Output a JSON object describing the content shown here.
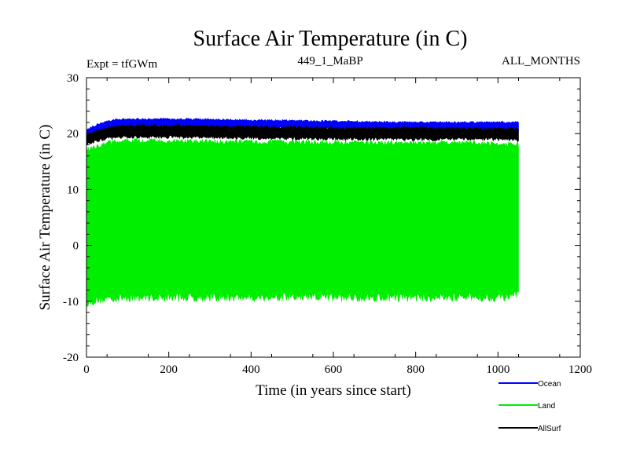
{
  "chart_data": {
    "type": "area",
    "title": "Surface Air Temperature (in C)",
    "subtitle_left": "Expt = tfGWm",
    "subtitle_center": "449_1_MaBP",
    "subtitle_right": "ALL_MONTHS",
    "xlabel": "Time (in years since start)",
    "ylabel": "Surface Air Temperature (in C)",
    "xlim": [
      0,
      1200
    ],
    "ylim": [
      -20,
      30
    ],
    "xticks": [
      0,
      200,
      400,
      600,
      800,
      1000,
      1200
    ],
    "yticks": [
      -20,
      -10,
      0,
      10,
      20,
      30
    ],
    "data_x_range": [
      0,
      1050
    ],
    "series": [
      {
        "name": "Ocean",
        "color": "#0000ff",
        "x": [
          0,
          25,
          50,
          75,
          100,
          150,
          200,
          300,
          400,
          500,
          600,
          700,
          800,
          900,
          1000,
          1050
        ],
        "upper": [
          20.8,
          21.8,
          22.4,
          22.7,
          22.8,
          22.8,
          22.8,
          22.7,
          22.6,
          22.5,
          22.4,
          22.3,
          22.2,
          22.2,
          22.2,
          22.2
        ],
        "lower": [
          19.2,
          20.2,
          20.9,
          21.2,
          21.3,
          21.3,
          21.3,
          21.2,
          21.1,
          21.0,
          20.9,
          20.8,
          20.8,
          20.7,
          20.7,
          20.7
        ]
      },
      {
        "name": "Land",
        "color": "#00ee00",
        "x": [
          0,
          25,
          50,
          75,
          100,
          150,
          200,
          300,
          400,
          500,
          600,
          700,
          800,
          900,
          1000,
          1050
        ],
        "upper": [
          17.5,
          18.3,
          18.8,
          19.0,
          19.2,
          19.2,
          19.1,
          19.0,
          19.0,
          18.9,
          18.9,
          18.8,
          18.8,
          18.8,
          18.7,
          18.5
        ],
        "lower": [
          -10.2,
          -9.8,
          -9.5,
          -9.4,
          -9.3,
          -9.3,
          -9.3,
          -9.3,
          -9.3,
          -9.3,
          -9.3,
          -9.3,
          -9.3,
          -9.3,
          -9.3,
          -9.0
        ]
      },
      {
        "name": "AllSurf",
        "color": "#000000",
        "x": [
          0,
          25,
          50,
          75,
          100,
          150,
          200,
          300,
          400,
          500,
          600,
          700,
          800,
          900,
          1000,
          1050
        ],
        "upper": [
          20.0,
          20.8,
          21.3,
          21.6,
          21.7,
          21.7,
          21.7,
          21.6,
          21.5,
          21.4,
          21.3,
          21.3,
          21.3,
          21.2,
          21.2,
          21.2
        ],
        "lower": [
          18.2,
          18.7,
          19.1,
          19.3,
          19.4,
          19.4,
          19.4,
          19.3,
          19.2,
          19.1,
          19.1,
          19.0,
          19.0,
          19.0,
          19.0,
          18.8
        ]
      }
    ],
    "legend_position": "bottom-right"
  }
}
